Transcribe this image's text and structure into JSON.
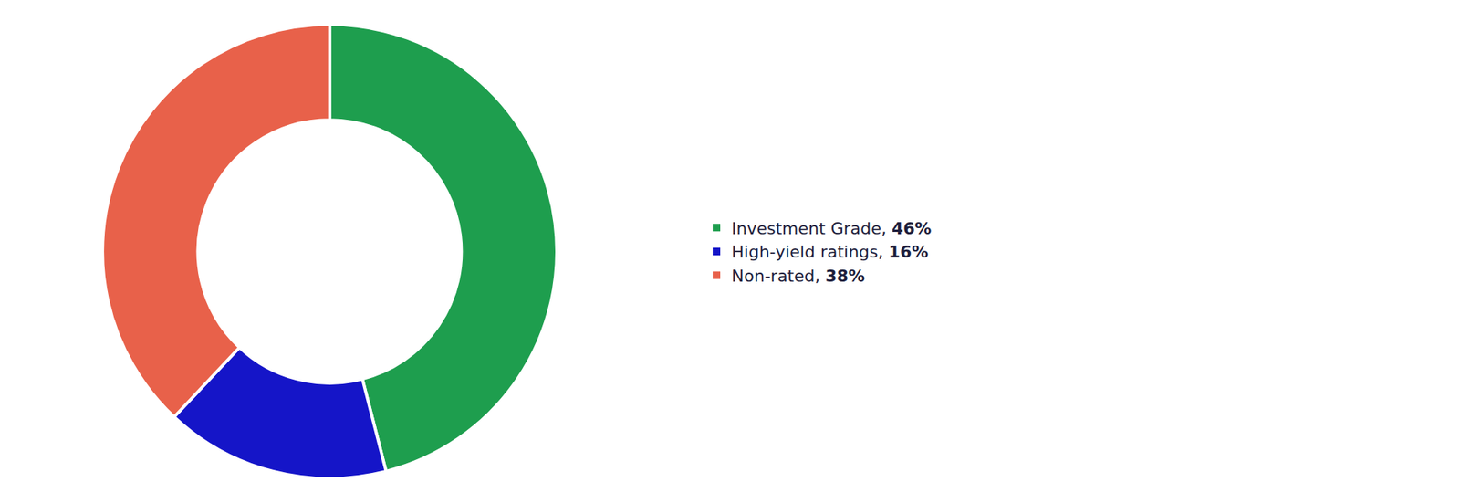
{
  "chart_data": {
    "type": "pie",
    "categories": [
      "Investment Grade, ",
      "High-yield ratings, ",
      "Non-rated, "
    ],
    "values": [
      46,
      16,
      38
    ],
    "value_labels": [
      "46%",
      "16%",
      "38%"
    ],
    "colors": [
      "#1e9e4e",
      "#1515c8",
      "#e8614a"
    ],
    "legend": "right"
  }
}
